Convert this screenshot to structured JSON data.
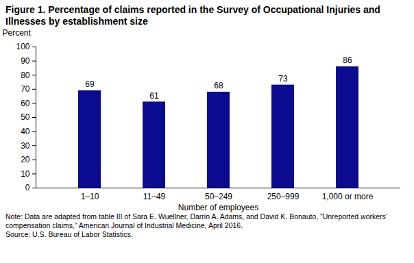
{
  "chart_data": {
    "type": "bar",
    "title": "Figure 1. Percentage of claims reported in the Survey of Occupational Injuries and Illnesses by establishment size",
    "y_label": "Percent",
    "x_label": "Number of employees",
    "categories": [
      "1–10",
      "11–49",
      "50–249",
      "250–999",
      "1,000 or more"
    ],
    "values": [
      69,
      61,
      68,
      73,
      86
    ],
    "color": "#0b0b8f",
    "ylim": [
      0,
      100
    ],
    "yticks": [
      0,
      10,
      20,
      30,
      40,
      50,
      60,
      70,
      80,
      90,
      100
    ],
    "grid": false,
    "data_labels": true,
    "note": "Note: Data are adapted from table III of Sara E. Wuellner, Darrin A. Adams, and David K. Bonauto, “Unreported workers’ compensation claims,” American Journal of Industrial Medicine, April 2016.",
    "source": "Source: U.S. Bureau of Labor Statistics."
  }
}
